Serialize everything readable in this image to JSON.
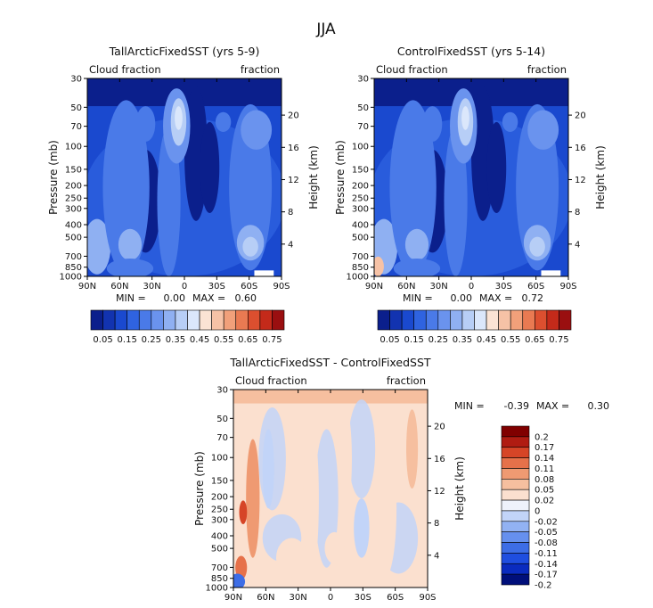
{
  "page_title": "JJA",
  "colors": {
    "abs_scale": [
      "#0b1f8c",
      "#1233b0",
      "#1a49cf",
      "#2f63e0",
      "#4a7ae8",
      "#6a93ee",
      "#8fb0f2",
      "#b7cef6",
      "#dbe7fb",
      "#fbe3d4",
      "#f6c2a6",
      "#f1a07a",
      "#e97a52",
      "#dc4f2f",
      "#c42a1a",
      "#9a0f10"
    ],
    "diff_scale": [
      "#000f7a",
      "#0a2bbf",
      "#1f4ee0",
      "#3d6de6",
      "#6690ee",
      "#92b2f3",
      "#c2d4f8",
      "#eef2fb",
      "#fbe0cf",
      "#f6bf9f",
      "#ef9a72",
      "#e6714a",
      "#d64527",
      "#b01c12",
      "#800000"
    ]
  },
  "chart_data": [
    {
      "type": "heatmap",
      "title": "TallArcticFixedSST (yrs 5-9)",
      "left_label": "Cloud fraction",
      "right_label": "fraction",
      "ylabel": "Pressure (mb)",
      "ylabel_right": "Height (km)",
      "x_ticks": [
        "90N",
        "60N",
        "30N",
        "0",
        "30S",
        "60S",
        "90S"
      ],
      "y_ticks": [
        "30",
        "50",
        "70",
        "100",
        "150",
        "200",
        "250",
        "300",
        "400",
        "500",
        "700",
        "850",
        "1000"
      ],
      "height_ticks": [
        "20",
        "16",
        "12",
        "8",
        "4"
      ],
      "min_label": "MIN =",
      "min": "0.00",
      "max_label": "MAX =",
      "max": "0.60",
      "colorbar_labels": [
        "0.05",
        "0.15",
        "0.25",
        "0.35",
        "0.45",
        "0.55",
        "0.65",
        "0.75"
      ]
    },
    {
      "type": "heatmap",
      "title": "ControlFixedSST (yrs 5-14)",
      "left_label": "Cloud fraction",
      "right_label": "fraction",
      "ylabel": "Pressure (mb)",
      "ylabel_right": "Height (km)",
      "x_ticks": [
        "90N",
        "60N",
        "30N",
        "0",
        "30S",
        "60S",
        "90S"
      ],
      "y_ticks": [
        "30",
        "50",
        "70",
        "100",
        "150",
        "200",
        "250",
        "300",
        "400",
        "500",
        "700",
        "850",
        "1000"
      ],
      "height_ticks": [
        "20",
        "16",
        "12",
        "8",
        "4"
      ],
      "min_label": "MIN =",
      "min": "0.00",
      "max_label": "MAX =",
      "max": "0.72",
      "colorbar_labels": [
        "0.05",
        "0.15",
        "0.25",
        "0.35",
        "0.45",
        "0.55",
        "0.65",
        "0.75"
      ]
    },
    {
      "type": "heatmap",
      "title": "TallArcticFixedSST - ControlFixedSST",
      "left_label": "Cloud fraction",
      "right_label": "fraction",
      "ylabel": "Pressure (mb)",
      "ylabel_right": "Height (km)",
      "x_ticks": [
        "90N",
        "60N",
        "30N",
        "0",
        "30S",
        "60S",
        "90S"
      ],
      "y_ticks": [
        "30",
        "50",
        "70",
        "100",
        "150",
        "200",
        "250",
        "300",
        "400",
        "500",
        "700",
        "850",
        "1000"
      ],
      "height_ticks": [
        "20",
        "16",
        "12",
        "8",
        "4"
      ],
      "min_label": "MIN =",
      "min": "-0.39",
      "max_label": "MAX =",
      "max": "0.30",
      "colorbar_labels": [
        "0.2",
        "0.17",
        "0.14",
        "0.11",
        "0.08",
        "0.05",
        "0.02",
        "0",
        "-0.02",
        "-0.05",
        "-0.08",
        "-0.11",
        "-0.14",
        "-0.17",
        "-0.2"
      ]
    }
  ]
}
